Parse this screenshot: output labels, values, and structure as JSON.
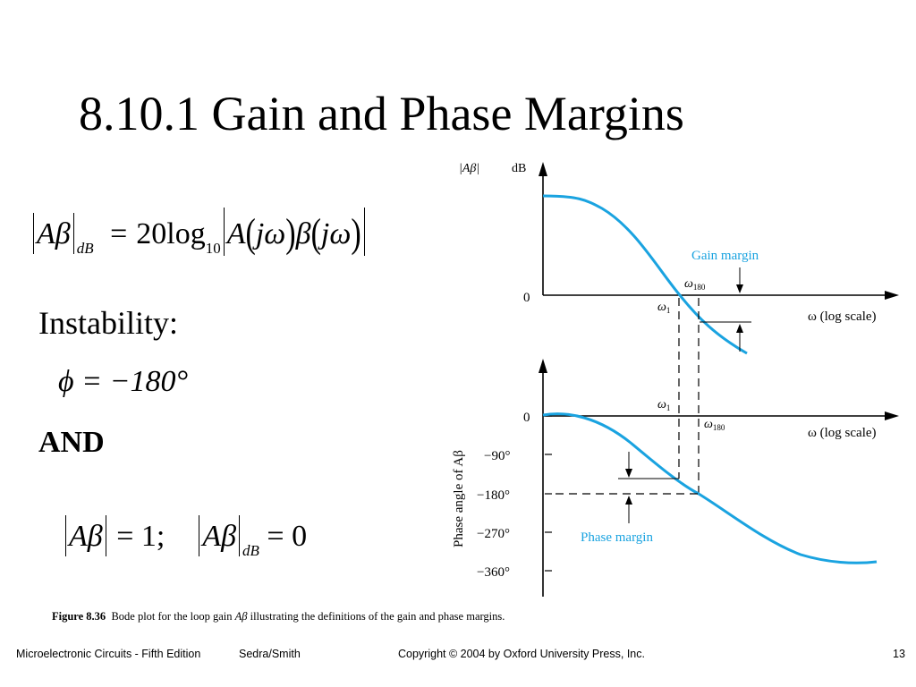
{
  "title": "8.10.1 Gain and Phase Margins",
  "equation_db": {
    "lhs_sym": "Aβ",
    "lhs_sub": "dB",
    "rhs_coef": "20",
    "rhs_log": "log",
    "rhs_log_sub": "10",
    "rhs_A": "A",
    "rhs_jw": "jω",
    "rhs_beta": "β"
  },
  "instability_label": "Instability:",
  "phase_condition": "ϕ = −180°",
  "and_label": "AND",
  "magnitude_condition": {
    "part1": "Aβ",
    "part1_rhs": "= 1;",
    "part2": "Aβ",
    "part2_sub": "dB",
    "part2_rhs": "= 0"
  },
  "figure": {
    "gain_axis_label_abs": "|Aβ|",
    "gain_axis_unit": "dB",
    "gain_zero": "0",
    "gain_margin_label": "Gain margin",
    "omega180_label": "ω",
    "omega180_sub": "180",
    "omega1_label": "ω",
    "omega1_sub": "1",
    "x_axis_label_top": "ω (log scale)",
    "x_axis_label_bottom": "ω (log scale)",
    "phase_axis_label": "Phase angle of Aβ",
    "phase_ticks": [
      "0",
      "−90°",
      "−180°",
      "−270°",
      "−360°"
    ],
    "phase_margin_label": "Phase margin",
    "curve_color": "#1aa3e0"
  },
  "caption": {
    "fig_no": "Figure 8.36",
    "text_before": "Bode plot for the loop gain ",
    "sym": "Aβ",
    "text_after": " illustrating the definitions of the gain  and phase margins."
  },
  "footer": {
    "book": "Microelectronic Circuits - Fifth Edition",
    "authors": "Sedra/Smith",
    "copyright": "Copyright © 2004 by Oxford University Press, Inc.",
    "page": "13"
  }
}
